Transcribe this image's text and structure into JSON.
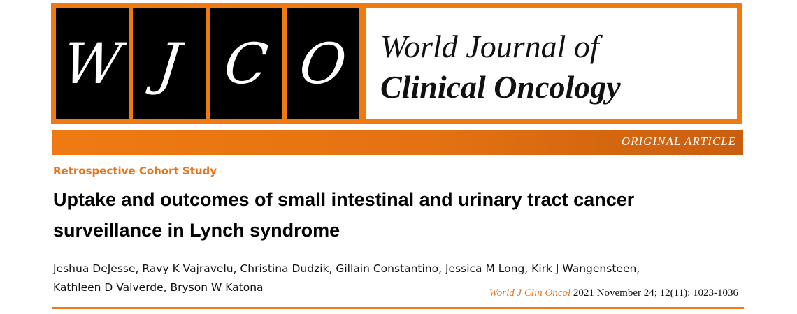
{
  "logo": {
    "letters": [
      "W",
      "J",
      "C",
      "O"
    ]
  },
  "journal": {
    "name_line1": "World Journal of",
    "name_line2": "Clinical Oncology"
  },
  "article_type": "ORIGINAL ARTICLE",
  "study_type": "Retrospective Cohort Study",
  "title": "Uptake and outcomes of small intestinal and urinary tract cancer surveillance in Lynch syndrome",
  "authors": "Jeshua DeJesse, Ravy K Vajravelu, Christina Dudzik, Gillain Constantino, Jessica M Long, Kirk J Wangensteen, Kathleen D Valverde, Bryson W Katona",
  "citation": {
    "journal_abbrev": "World J Clin Oncol",
    "details": " 2021 November 24; 12(11): 1023-1036"
  },
  "colors": {
    "accent_orange": "#f07a12",
    "logo_black": "#000000"
  }
}
